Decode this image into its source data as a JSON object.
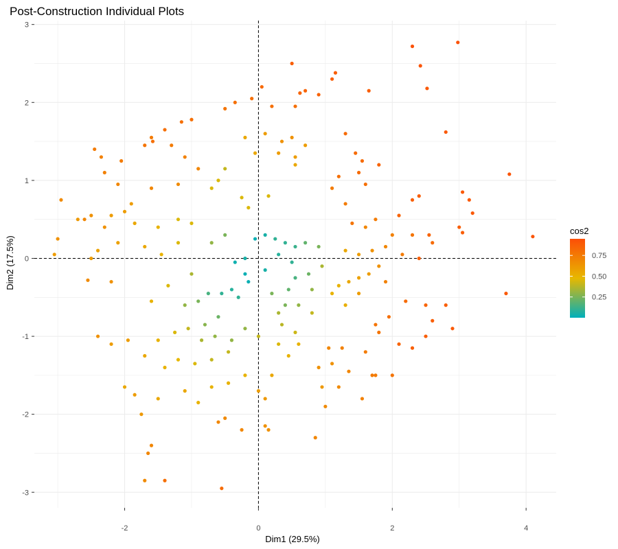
{
  "chart_data": {
    "type": "scatter",
    "title": "Post-Construction Individual Plots",
    "xlabel": "Dim1 (29.5%)",
    "ylabel": "Dim2 (17.5%)",
    "xlim": [
      -3.35,
      4.45
    ],
    "ylim": [
      -3.2,
      3.05
    ],
    "xticks": [
      -2,
      0,
      2,
      4
    ],
    "yticks": [
      -3,
      -2,
      -1,
      0,
      1,
      2,
      3
    ],
    "grid": true,
    "reference_lines": {
      "x": 0,
      "y": 0,
      "style": "dashed"
    },
    "color_scale": {
      "name": "cos2",
      "range": [
        0.0,
        0.95
      ],
      "breaks": [
        0.25,
        0.5,
        0.75
      ],
      "break_labels": [
        "0.25",
        "0.50",
        "0.75"
      ],
      "colors": [
        "#00AFBB",
        "#E7B800",
        "#FC4E07"
      ]
    },
    "legend_position": "right",
    "points": [
      {
        "x": 2.3,
        "y": 2.72,
        "cos2": 0.93
      },
      {
        "x": 2.98,
        "y": 2.77,
        "cos2": 0.93
      },
      {
        "x": 2.42,
        "y": 2.47,
        "cos2": 0.92
      },
      {
        "x": 0.5,
        "y": 2.5,
        "cos2": 0.88
      },
      {
        "x": 1.15,
        "y": 2.38,
        "cos2": 0.88
      },
      {
        "x": 1.1,
        "y": 2.3,
        "cos2": 0.88
      },
      {
        "x": 2.52,
        "y": 2.18,
        "cos2": 0.9
      },
      {
        "x": 1.65,
        "y": 2.15,
        "cos2": 0.88
      },
      {
        "x": 0.62,
        "y": 2.12,
        "cos2": 0.85
      },
      {
        "x": 0.9,
        "y": 2.1,
        "cos2": 0.86
      },
      {
        "x": 0.7,
        "y": 2.15,
        "cos2": 0.85
      },
      {
        "x": 0.05,
        "y": 2.2,
        "cos2": 0.83
      },
      {
        "x": -0.1,
        "y": 2.05,
        "cos2": 0.8
      },
      {
        "x": -0.35,
        "y": 2.0,
        "cos2": 0.8
      },
      {
        "x": -0.5,
        "y": 1.92,
        "cos2": 0.78
      },
      {
        "x": 0.2,
        "y": 1.95,
        "cos2": 0.8
      },
      {
        "x": 0.55,
        "y": 1.95,
        "cos2": 0.8
      },
      {
        "x": -1.0,
        "y": 1.78,
        "cos2": 0.8
      },
      {
        "x": -1.15,
        "y": 1.75,
        "cos2": 0.8
      },
      {
        "x": -1.4,
        "y": 1.65,
        "cos2": 0.8
      },
      {
        "x": -1.58,
        "y": 1.5,
        "cos2": 0.8
      },
      {
        "x": -1.7,
        "y": 1.45,
        "cos2": 0.78
      },
      {
        "x": -2.45,
        "y": 1.4,
        "cos2": 0.75
      },
      {
        "x": -2.35,
        "y": 1.3,
        "cos2": 0.72
      },
      {
        "x": -2.05,
        "y": 1.25,
        "cos2": 0.75
      },
      {
        "x": -2.3,
        "y": 1.1,
        "cos2": 0.72
      },
      {
        "x": -2.1,
        "y": 0.95,
        "cos2": 0.7
      },
      {
        "x": -2.6,
        "y": 0.5,
        "cos2": 0.7
      },
      {
        "x": -2.95,
        "y": 0.75,
        "cos2": 0.68
      },
      {
        "x": -3.0,
        "y": 0.25,
        "cos2": 0.65
      },
      {
        "x": -3.05,
        "y": 0.05,
        "cos2": 0.6
      },
      {
        "x": -2.5,
        "y": 0.55,
        "cos2": 0.65
      },
      {
        "x": -2.3,
        "y": 0.4,
        "cos2": 0.65
      },
      {
        "x": -1.6,
        "y": 1.55,
        "cos2": 0.75
      },
      {
        "x": -1.3,
        "y": 1.45,
        "cos2": 0.75
      },
      {
        "x": -1.1,
        "y": 1.3,
        "cos2": 0.72
      },
      {
        "x": -0.9,
        "y": 1.15,
        "cos2": 0.7
      },
      {
        "x": -1.2,
        "y": 0.95,
        "cos2": 0.68
      },
      {
        "x": -1.6,
        "y": 0.9,
        "cos2": 0.7
      },
      {
        "x": -1.9,
        "y": 0.7,
        "cos2": 0.6
      },
      {
        "x": -2.0,
        "y": 0.6,
        "cos2": 0.6
      },
      {
        "x": -2.2,
        "y": 0.55,
        "cos2": 0.6
      },
      {
        "x": -1.85,
        "y": 0.45,
        "cos2": 0.55
      },
      {
        "x": -1.5,
        "y": 0.4,
        "cos2": 0.5
      },
      {
        "x": -1.2,
        "y": 0.5,
        "cos2": 0.45
      },
      {
        "x": -1.0,
        "y": 0.45,
        "cos2": 0.45
      },
      {
        "x": -0.7,
        "y": 0.9,
        "cos2": 0.45
      },
      {
        "x": -0.5,
        "y": 1.15,
        "cos2": 0.4
      },
      {
        "x": -0.6,
        "y": 1.0,
        "cos2": 0.45
      },
      {
        "x": -0.25,
        "y": 0.78,
        "cos2": 0.45
      },
      {
        "x": -0.15,
        "y": 0.65,
        "cos2": 0.45
      },
      {
        "x": -0.2,
        "y": 1.55,
        "cos2": 0.55
      },
      {
        "x": 0.1,
        "y": 1.6,
        "cos2": 0.6
      },
      {
        "x": 0.35,
        "y": 1.5,
        "cos2": 0.65
      },
      {
        "x": 0.5,
        "y": 1.55,
        "cos2": 0.65
      },
      {
        "x": 0.7,
        "y": 1.45,
        "cos2": 0.6
      },
      {
        "x": 0.3,
        "y": 1.35,
        "cos2": 0.6
      },
      {
        "x": -0.05,
        "y": 1.35,
        "cos2": 0.55
      },
      {
        "x": 0.55,
        "y": 1.3,
        "cos2": 0.6
      },
      {
        "x": 0.15,
        "y": 0.8,
        "cos2": 0.45
      },
      {
        "x": 0.55,
        "y": 1.2,
        "cos2": 0.55
      },
      {
        "x": 1.3,
        "y": 1.6,
        "cos2": 0.82
      },
      {
        "x": 1.45,
        "y": 1.35,
        "cos2": 0.82
      },
      {
        "x": 1.55,
        "y": 1.25,
        "cos2": 0.82
      },
      {
        "x": 1.8,
        "y": 1.2,
        "cos2": 0.85
      },
      {
        "x": 1.5,
        "y": 1.1,
        "cos2": 0.82
      },
      {
        "x": 1.2,
        "y": 1.05,
        "cos2": 0.8
      },
      {
        "x": 1.6,
        "y": 0.95,
        "cos2": 0.8
      },
      {
        "x": 1.1,
        "y": 0.9,
        "cos2": 0.75
      },
      {
        "x": 1.3,
        "y": 0.7,
        "cos2": 0.75
      },
      {
        "x": 1.4,
        "y": 0.45,
        "cos2": 0.78
      },
      {
        "x": 1.6,
        "y": 0.4,
        "cos2": 0.7
      },
      {
        "x": 1.75,
        "y": 0.5,
        "cos2": 0.75
      },
      {
        "x": 2.1,
        "y": 0.55,
        "cos2": 0.85
      },
      {
        "x": 2.3,
        "y": 0.75,
        "cos2": 0.88
      },
      {
        "x": 2.4,
        "y": 0.8,
        "cos2": 0.88
      },
      {
        "x": 2.0,
        "y": 0.3,
        "cos2": 0.72
      },
      {
        "x": 2.3,
        "y": 0.3,
        "cos2": 0.78
      },
      {
        "x": 2.55,
        "y": 0.3,
        "cos2": 0.85
      },
      {
        "x": 2.6,
        "y": 0.2,
        "cos2": 0.82
      },
      {
        "x": 2.4,
        "y": 0.0,
        "cos2": 0.88
      },
      {
        "x": 2.8,
        "y": 1.62,
        "cos2": 0.9
      },
      {
        "x": 3.05,
        "y": 0.85,
        "cos2": 0.9
      },
      {
        "x": 3.15,
        "y": 0.75,
        "cos2": 0.9
      },
      {
        "x": 3.2,
        "y": 0.58,
        "cos2": 0.9
      },
      {
        "x": 3.0,
        "y": 0.4,
        "cos2": 0.88
      },
      {
        "x": 3.05,
        "y": 0.33,
        "cos2": 0.88
      },
      {
        "x": 3.75,
        "y": 1.08,
        "cos2": 0.92
      },
      {
        "x": 4.1,
        "y": 0.28,
        "cos2": 0.92
      },
      {
        "x": 3.7,
        "y": -0.45,
        "cos2": 0.9
      },
      {
        "x": 2.15,
        "y": 0.05,
        "cos2": 0.75
      },
      {
        "x": 1.9,
        "y": 0.15,
        "cos2": 0.7
      },
      {
        "x": 1.7,
        "y": 0.1,
        "cos2": 0.65
      },
      {
        "x": 1.5,
        "y": 0.05,
        "cos2": 0.6
      },
      {
        "x": 1.3,
        "y": 0.1,
        "cos2": 0.55
      },
      {
        "x": 1.8,
        "y": -0.1,
        "cos2": 0.65
      },
      {
        "x": 1.65,
        "y": -0.2,
        "cos2": 0.6
      },
      {
        "x": 1.5,
        "y": -0.25,
        "cos2": 0.58
      },
      {
        "x": 1.35,
        "y": -0.3,
        "cos2": 0.55
      },
      {
        "x": 1.2,
        "y": -0.35,
        "cos2": 0.5
      },
      {
        "x": 1.1,
        "y": -0.45,
        "cos2": 0.5
      },
      {
        "x": 1.3,
        "y": -0.6,
        "cos2": 0.52
      },
      {
        "x": 1.5,
        "y": -0.45,
        "cos2": 0.6
      },
      {
        "x": 1.9,
        "y": -0.3,
        "cos2": 0.72
      },
      {
        "x": 2.2,
        "y": -0.55,
        "cos2": 0.82
      },
      {
        "x": 2.5,
        "y": -0.6,
        "cos2": 0.85
      },
      {
        "x": 2.8,
        "y": -0.6,
        "cos2": 0.88
      },
      {
        "x": 2.6,
        "y": -0.8,
        "cos2": 0.88
      },
      {
        "x": 2.9,
        "y": -0.9,
        "cos2": 0.9
      },
      {
        "x": 2.5,
        "y": -1.0,
        "cos2": 0.88
      },
      {
        "x": 2.3,
        "y": -1.15,
        "cos2": 0.88
      },
      {
        "x": 2.1,
        "y": -1.1,
        "cos2": 0.85
      },
      {
        "x": 1.95,
        "y": -0.75,
        "cos2": 0.8
      },
      {
        "x": 1.75,
        "y": -0.85,
        "cos2": 0.78
      },
      {
        "x": 1.8,
        "y": -0.95,
        "cos2": 0.78
      },
      {
        "x": 1.6,
        "y": -1.2,
        "cos2": 0.75
      },
      {
        "x": 1.25,
        "y": -1.15,
        "cos2": 0.72
      },
      {
        "x": 1.05,
        "y": -1.15,
        "cos2": 0.7
      },
      {
        "x": 0.9,
        "y": -1.4,
        "cos2": 0.65
      },
      {
        "x": 1.1,
        "y": -1.35,
        "cos2": 0.65
      },
      {
        "x": 1.35,
        "y": -1.45,
        "cos2": 0.7
      },
      {
        "x": 1.7,
        "y": -1.5,
        "cos2": 0.75
      },
      {
        "x": 2.0,
        "y": -1.5,
        "cos2": 0.78
      },
      {
        "x": 1.75,
        "y": -1.5,
        "cos2": 0.75
      },
      {
        "x": 0.95,
        "y": -1.65,
        "cos2": 0.62
      },
      {
        "x": 1.2,
        "y": -1.65,
        "cos2": 0.68
      },
      {
        "x": 1.55,
        "y": -1.8,
        "cos2": 0.72
      },
      {
        "x": 1.0,
        "y": -1.9,
        "cos2": 0.68
      },
      {
        "x": 0.85,
        "y": -2.3,
        "cos2": 0.7
      },
      {
        "x": 0.1,
        "y": -1.8,
        "cos2": 0.62
      },
      {
        "x": 0.0,
        "y": -1.7,
        "cos2": 0.6
      },
      {
        "x": 0.1,
        "y": -2.15,
        "cos2": 0.65
      },
      {
        "x": 0.15,
        "y": -2.2,
        "cos2": 0.65
      },
      {
        "x": -0.5,
        "y": -2.05,
        "cos2": 0.68
      },
      {
        "x": -0.6,
        "y": -2.1,
        "cos2": 0.7
      },
      {
        "x": -0.25,
        "y": -2.2,
        "cos2": 0.7
      },
      {
        "x": -0.55,
        "y": -2.95,
        "cos2": 0.82
      },
      {
        "x": -1.4,
        "y": -2.85,
        "cos2": 0.8
      },
      {
        "x": -1.7,
        "y": -2.85,
        "cos2": 0.68
      },
      {
        "x": -1.6,
        "y": -2.4,
        "cos2": 0.7
      },
      {
        "x": -1.65,
        "y": -2.5,
        "cos2": 0.7
      },
      {
        "x": -1.75,
        "y": -2.0,
        "cos2": 0.62
      },
      {
        "x": -1.85,
        "y": -1.75,
        "cos2": 0.6
      },
      {
        "x": -2.0,
        "y": -1.65,
        "cos2": 0.55
      },
      {
        "x": -1.5,
        "y": -1.8,
        "cos2": 0.55
      },
      {
        "x": -1.1,
        "y": -1.7,
        "cos2": 0.55
      },
      {
        "x": -0.9,
        "y": -1.85,
        "cos2": 0.5
      },
      {
        "x": -0.7,
        "y": -1.65,
        "cos2": 0.5
      },
      {
        "x": -0.45,
        "y": -1.6,
        "cos2": 0.5
      },
      {
        "x": -0.2,
        "y": -1.5,
        "cos2": 0.5
      },
      {
        "x": -1.4,
        "y": -1.4,
        "cos2": 0.5
      },
      {
        "x": -1.2,
        "y": -1.3,
        "cos2": 0.48
      },
      {
        "x": -0.95,
        "y": -1.35,
        "cos2": 0.45
      },
      {
        "x": -0.7,
        "y": -1.3,
        "cos2": 0.4
      },
      {
        "x": -0.45,
        "y": -1.2,
        "cos2": 0.4
      },
      {
        "x": -1.7,
        "y": -1.25,
        "cos2": 0.55
      },
      {
        "x": -1.5,
        "y": -1.05,
        "cos2": 0.5
      },
      {
        "x": -1.25,
        "y": -0.95,
        "cos2": 0.45
      },
      {
        "x": -1.05,
        "y": -0.9,
        "cos2": 0.4
      },
      {
        "x": -0.85,
        "y": -1.05,
        "cos2": 0.35
      },
      {
        "x": -0.65,
        "y": -1.0,
        "cos2": 0.3
      },
      {
        "x": -0.4,
        "y": -1.05,
        "cos2": 0.3
      },
      {
        "x": -0.2,
        "y": -0.9,
        "cos2": 0.3
      },
      {
        "x": 0.0,
        "y": -1.0,
        "cos2": 0.4
      },
      {
        "x": -1.1,
        "y": -0.6,
        "cos2": 0.3
      },
      {
        "x": -0.9,
        "y": -0.55,
        "cos2": 0.25
      },
      {
        "x": -0.75,
        "y": -0.45,
        "cos2": 0.15
      },
      {
        "x": -0.55,
        "y": -0.45,
        "cos2": 0.1
      },
      {
        "x": -0.4,
        "y": -0.4,
        "cos2": 0.08
      },
      {
        "x": -0.3,
        "y": -0.5,
        "cos2": 0.1
      },
      {
        "x": -0.35,
        "y": -0.05,
        "cos2": 0.03
      },
      {
        "x": -0.2,
        "y": -0.2,
        "cos2": 0.02
      },
      {
        "x": -0.15,
        "y": -0.3,
        "cos2": 0.02
      },
      {
        "x": -0.05,
        "y": 0.25,
        "cos2": 0.02
      },
      {
        "x": 0.1,
        "y": 0.3,
        "cos2": 0.05
      },
      {
        "x": 0.25,
        "y": 0.25,
        "cos2": 0.1
      },
      {
        "x": 0.4,
        "y": 0.2,
        "cos2": 0.1
      },
      {
        "x": 0.55,
        "y": 0.15,
        "cos2": 0.12
      },
      {
        "x": 0.7,
        "y": 0.2,
        "cos2": 0.2
      },
      {
        "x": 0.9,
        "y": 0.15,
        "cos2": 0.25
      },
      {
        "x": 0.5,
        "y": -0.05,
        "cos2": 0.1
      },
      {
        "x": 0.55,
        "y": -0.25,
        "cos2": 0.15
      },
      {
        "x": 0.45,
        "y": -0.4,
        "cos2": 0.2
      },
      {
        "x": 0.6,
        "y": -0.6,
        "cos2": 0.3
      },
      {
        "x": 0.4,
        "y": -0.6,
        "cos2": 0.25
      },
      {
        "x": 0.3,
        "y": -0.7,
        "cos2": 0.35
      },
      {
        "x": 0.2,
        "y": -0.45,
        "cos2": 0.25
      },
      {
        "x": 0.8,
        "y": -0.4,
        "cos2": 0.3
      },
      {
        "x": 0.75,
        "y": -0.2,
        "cos2": 0.22
      },
      {
        "x": 0.95,
        "y": -0.1,
        "cos2": 0.35
      },
      {
        "x": 0.35,
        "y": -0.85,
        "cos2": 0.38
      },
      {
        "x": 0.55,
        "y": -0.95,
        "cos2": 0.42
      },
      {
        "x": 0.3,
        "y": -1.1,
        "cos2": 0.45
      },
      {
        "x": 0.45,
        "y": -1.25,
        "cos2": 0.5
      },
      {
        "x": 0.2,
        "y": -1.5,
        "cos2": 0.55
      },
      {
        "x": 0.6,
        "y": -1.1,
        "cos2": 0.5
      },
      {
        "x": 0.8,
        "y": -0.7,
        "cos2": 0.4
      },
      {
        "x": -1.2,
        "y": 0.2,
        "cos2": 0.45
      },
      {
        "x": -1.45,
        "y": 0.05,
        "cos2": 0.5
      },
      {
        "x": -1.7,
        "y": 0.15,
        "cos2": 0.55
      },
      {
        "x": -2.1,
        "y": 0.2,
        "cos2": 0.58
      },
      {
        "x": -2.5,
        "y": 0.0,
        "cos2": 0.6
      },
      {
        "x": -2.4,
        "y": 0.1,
        "cos2": 0.58
      },
      {
        "x": -2.7,
        "y": 0.5,
        "cos2": 0.62
      },
      {
        "x": -2.2,
        "y": -0.3,
        "cos2": 0.65
      },
      {
        "x": -2.55,
        "y": -0.28,
        "cos2": 0.68
      },
      {
        "x": -2.4,
        "y": -1.0,
        "cos2": 0.65
      },
      {
        "x": -1.95,
        "y": -1.05,
        "cos2": 0.6
      },
      {
        "x": -2.2,
        "y": -1.1,
        "cos2": 0.6
      },
      {
        "x": -1.6,
        "y": -0.55,
        "cos2": 0.5
      },
      {
        "x": -1.35,
        "y": -0.35,
        "cos2": 0.45
      },
      {
        "x": -1.0,
        "y": -0.2,
        "cos2": 0.35
      },
      {
        "x": -0.5,
        "y": 0.3,
        "cos2": 0.25
      },
      {
        "x": -0.7,
        "y": 0.2,
        "cos2": 0.3
      },
      {
        "x": -0.2,
        "y": 0.0,
        "cos2": 0.05
      },
      {
        "x": 0.1,
        "y": -0.15,
        "cos2": 0.05
      },
      {
        "x": 0.3,
        "y": 0.05,
        "cos2": 0.08
      },
      {
        "x": -0.6,
        "y": -0.75,
        "cos2": 0.22
      },
      {
        "x": -0.8,
        "y": -0.85,
        "cos2": 0.28
      }
    ]
  }
}
